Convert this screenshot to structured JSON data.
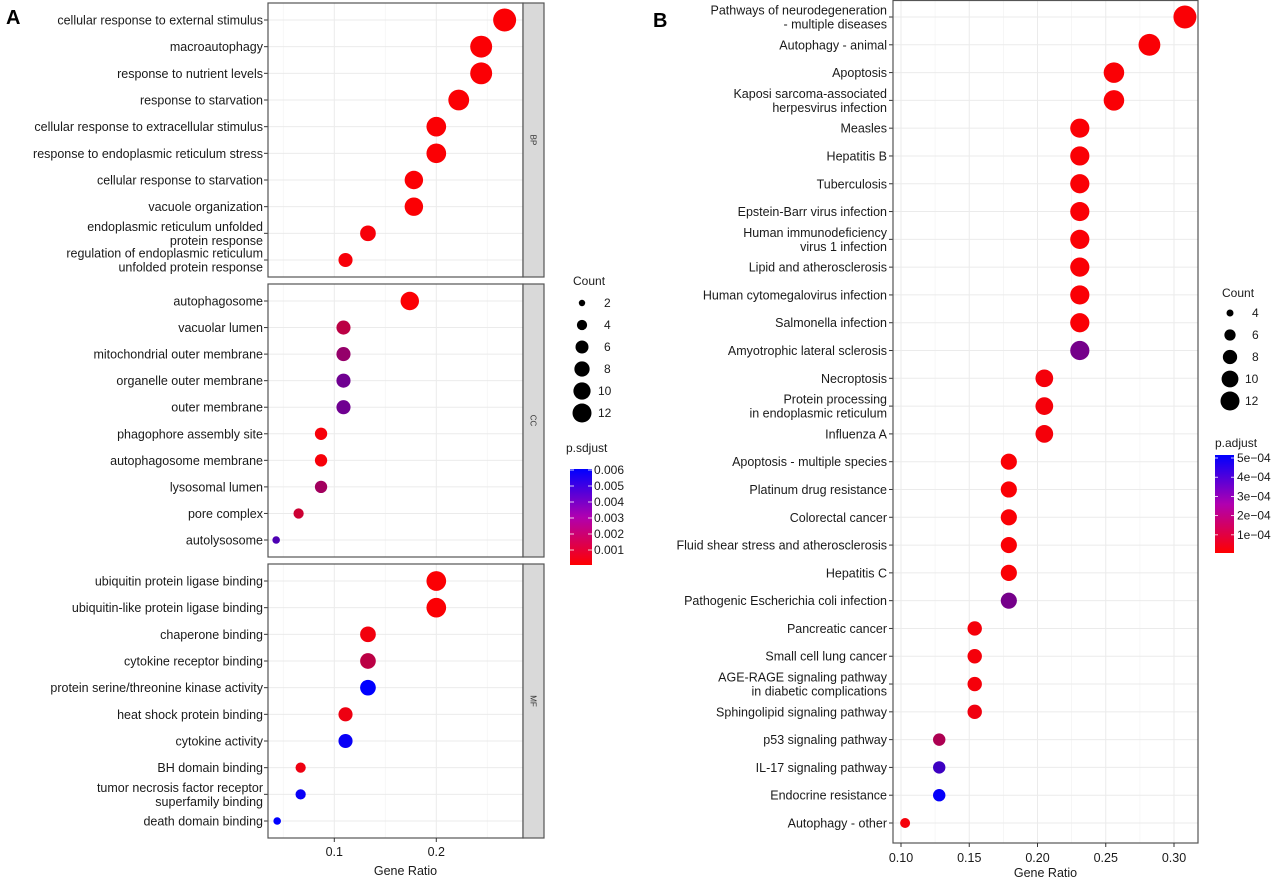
{
  "chart_data": [
    {
      "type": "scatter",
      "panel_label": "A",
      "xlabel": "Gene Ratio",
      "ylabel": "",
      "xlim": [
        0.035,
        0.285
      ],
      "xticks": [
        0.1,
        0.2
      ],
      "xtick_labels": [
        "0.1",
        "0.2"
      ],
      "grid": true,
      "size_legend": {
        "title": "Count",
        "values": [
          2,
          4,
          6,
          8,
          10,
          12
        ],
        "labels": [
          "2",
          "4",
          "6",
          "8",
          "10",
          "12"
        ]
      },
      "color_legend": {
        "title": "p.sdjust",
        "range": [
          0.0,
          0.006
        ],
        "low_color": "#ff0000",
        "high_color": "#0000ff",
        "ticks": [
          0.006,
          0.005,
          0.004,
          0.003,
          0.002,
          0.001
        ],
        "tick_labels": [
          "0.006",
          "0.005",
          "0.004",
          "0.003",
          "0.002",
          "0.001"
        ]
      },
      "legend_position": "right",
      "facets": [
        {
          "name": "BP",
          "terms": [
            {
              "label": [
                "cellular response to external stimulus"
              ],
              "gene_ratio": 0.267,
              "count": 12,
              "p_adjust": 0.0001
            },
            {
              "label": [
                "macroautophagy"
              ],
              "gene_ratio": 0.244,
              "count": 11,
              "p_adjust": 0.0001
            },
            {
              "label": [
                "response to nutrient levels"
              ],
              "gene_ratio": 0.244,
              "count": 11,
              "p_adjust": 0.0001
            },
            {
              "label": [
                "response to starvation"
              ],
              "gene_ratio": 0.222,
              "count": 10,
              "p_adjust": 0.0001
            },
            {
              "label": [
                "cellular response to extracellular stimulus"
              ],
              "gene_ratio": 0.2,
              "count": 9,
              "p_adjust": 0.0001
            },
            {
              "label": [
                "response to endoplasmic reticulum stress"
              ],
              "gene_ratio": 0.2,
              "count": 9,
              "p_adjust": 0.0001
            },
            {
              "label": [
                "cellular response to starvation"
              ],
              "gene_ratio": 0.178,
              "count": 8,
              "p_adjust": 0.0001
            },
            {
              "label": [
                "vacuole organization"
              ],
              "gene_ratio": 0.178,
              "count": 8,
              "p_adjust": 0.0001
            },
            {
              "label": [
                "endoplasmic reticulum unfolded",
                "protein response"
              ],
              "gene_ratio": 0.133,
              "count": 6,
              "p_adjust": 0.0002
            },
            {
              "label": [
                "regulation of endoplasmic reticulum",
                "unfolded protein response"
              ],
              "gene_ratio": 0.111,
              "count": 5,
              "p_adjust": 0.0002
            }
          ]
        },
        {
          "name": "CC",
          "terms": [
            {
              "label": [
                "autophagosome"
              ],
              "gene_ratio": 0.174,
              "count": 8,
              "p_adjust": 0.0001
            },
            {
              "label": [
                "vacuolar lumen"
              ],
              "gene_ratio": 0.109,
              "count": 5,
              "p_adjust": 0.0016
            },
            {
              "label": [
                "mitochondrial outer membrane"
              ],
              "gene_ratio": 0.109,
              "count": 5,
              "p_adjust": 0.0025
            },
            {
              "label": [
                "organelle outer membrane"
              ],
              "gene_ratio": 0.109,
              "count": 5,
              "p_adjust": 0.0034
            },
            {
              "label": [
                "outer membrane"
              ],
              "gene_ratio": 0.109,
              "count": 5,
              "p_adjust": 0.0034
            },
            {
              "label": [
                "phagophore assembly site"
              ],
              "gene_ratio": 0.087,
              "count": 4,
              "p_adjust": 0.0002
            },
            {
              "label": [
                "autophagosome membrane"
              ],
              "gene_ratio": 0.087,
              "count": 4,
              "p_adjust": 0.0002
            },
            {
              "label": [
                "lysosomal lumen"
              ],
              "gene_ratio": 0.087,
              "count": 4,
              "p_adjust": 0.0022
            },
            {
              "label": [
                "pore complex"
              ],
              "gene_ratio": 0.065,
              "count": 3,
              "p_adjust": 0.0012
            },
            {
              "label": [
                "autolysosome"
              ],
              "gene_ratio": 0.043,
              "count": 2,
              "p_adjust": 0.0042
            }
          ]
        },
        {
          "name": "MF",
          "terms": [
            {
              "label": [
                "ubiquitin protein ligase binding"
              ],
              "gene_ratio": 0.2,
              "count": 9,
              "p_adjust": 0.0001
            },
            {
              "label": [
                "ubiquitin-like protein ligase binding"
              ],
              "gene_ratio": 0.2,
              "count": 9,
              "p_adjust": 0.0001
            },
            {
              "label": [
                "chaperone binding"
              ],
              "gene_ratio": 0.133,
              "count": 6,
              "p_adjust": 0.0003
            },
            {
              "label": [
                "cytokine receptor binding"
              ],
              "gene_ratio": 0.133,
              "count": 6,
              "p_adjust": 0.0016
            },
            {
              "label": [
                "protein serine/threonine kinase activity"
              ],
              "gene_ratio": 0.133,
              "count": 6,
              "p_adjust": 0.006
            },
            {
              "label": [
                "heat shock protein binding"
              ],
              "gene_ratio": 0.111,
              "count": 5,
              "p_adjust": 0.0004
            },
            {
              "label": [
                "cytokine activity"
              ],
              "gene_ratio": 0.111,
              "count": 5,
              "p_adjust": 0.0058
            },
            {
              "label": [
                "BH domain binding"
              ],
              "gene_ratio": 0.067,
              "count": 3,
              "p_adjust": 0.0004
            },
            {
              "label": [
                "tumor necrosis factor receptor",
                "superfamily binding"
              ],
              "gene_ratio": 0.067,
              "count": 3,
              "p_adjust": 0.0058
            },
            {
              "label": [
                "death domain binding"
              ],
              "gene_ratio": 0.044,
              "count": 2,
              "p_adjust": 0.006
            }
          ]
        }
      ]
    },
    {
      "type": "scatter",
      "panel_label": "B",
      "xlabel": "Gene Ratio",
      "ylabel": "",
      "xlim": [
        0.094,
        0.317
      ],
      "xticks": [
        0.1,
        0.15,
        0.2,
        0.25,
        0.3
      ],
      "xtick_labels": [
        "0.10",
        "0.15",
        "0.20",
        "0.25",
        "0.30"
      ],
      "grid": true,
      "size_legend": {
        "title": "Count",
        "values": [
          4,
          6,
          8,
          10,
          12
        ],
        "labels": [
          "4",
          "6",
          "8",
          "10",
          "12"
        ]
      },
      "color_legend": {
        "title": "p.adjust",
        "range": [
          0.0,
          0.0005
        ],
        "low_color": "#ff0000",
        "high_color": "#0000ff",
        "ticks": [
          0.0005,
          0.0004,
          0.0003,
          0.0002,
          0.0001
        ],
        "tick_labels": [
          "5e−04",
          "4e−04",
          "3e−04",
          "2e−04",
          "1e−04"
        ]
      },
      "legend_position": "right",
      "terms": [
        {
          "label": [
            "Pathways of neurodegeneration",
            "- multiple diseases"
          ],
          "gene_ratio": 0.308,
          "count": 12,
          "p_adjust": 1e-05
        },
        {
          "label": [
            "Autophagy - animal"
          ],
          "gene_ratio": 0.282,
          "count": 11,
          "p_adjust": 1e-05
        },
        {
          "label": [
            "Apoptosis"
          ],
          "gene_ratio": 0.256,
          "count": 10,
          "p_adjust": 1e-05
        },
        {
          "label": [
            "Kaposi sarcoma-associated",
            "herpesvirus infection"
          ],
          "gene_ratio": 0.256,
          "count": 10,
          "p_adjust": 1e-05
        },
        {
          "label": [
            "Measles"
          ],
          "gene_ratio": 0.231,
          "count": 9,
          "p_adjust": 1e-05
        },
        {
          "label": [
            "Hepatitis B"
          ],
          "gene_ratio": 0.231,
          "count": 9,
          "p_adjust": 1e-05
        },
        {
          "label": [
            "Tuberculosis"
          ],
          "gene_ratio": 0.231,
          "count": 9,
          "p_adjust": 1e-05
        },
        {
          "label": [
            "Epstein-Barr virus infection"
          ],
          "gene_ratio": 0.231,
          "count": 9,
          "p_adjust": 1e-05
        },
        {
          "label": [
            "Human immunodeficiency",
            "virus 1 infection"
          ],
          "gene_ratio": 0.231,
          "count": 9,
          "p_adjust": 1e-05
        },
        {
          "label": [
            "Lipid and atherosclerosis"
          ],
          "gene_ratio": 0.231,
          "count": 9,
          "p_adjust": 1e-05
        },
        {
          "label": [
            "Human cytomegalovirus infection"
          ],
          "gene_ratio": 0.231,
          "count": 9,
          "p_adjust": 1e-05
        },
        {
          "label": [
            "Salmonella infection"
          ],
          "gene_ratio": 0.231,
          "count": 9,
          "p_adjust": 1e-05
        },
        {
          "label": [
            "Amyotrophic lateral sclerosis"
          ],
          "gene_ratio": 0.231,
          "count": 9,
          "p_adjust": 0.00027
        },
        {
          "label": [
            "Necroptosis"
          ],
          "gene_ratio": 0.205,
          "count": 8,
          "p_adjust": 2e-05
        },
        {
          "label": [
            "Protein processing",
            "in endoplasmic reticulum"
          ],
          "gene_ratio": 0.205,
          "count": 8,
          "p_adjust": 2e-05
        },
        {
          "label": [
            "Influenza A"
          ],
          "gene_ratio": 0.205,
          "count": 8,
          "p_adjust": 2e-05
        },
        {
          "label": [
            "Apoptosis - multiple species"
          ],
          "gene_ratio": 0.179,
          "count": 7,
          "p_adjust": 1e-05
        },
        {
          "label": [
            "Platinum drug resistance"
          ],
          "gene_ratio": 0.179,
          "count": 7,
          "p_adjust": 1e-05
        },
        {
          "label": [
            "Colorectal cancer"
          ],
          "gene_ratio": 0.179,
          "count": 7,
          "p_adjust": 1e-05
        },
        {
          "label": [
            "Fluid shear stress and atherosclerosis"
          ],
          "gene_ratio": 0.179,
          "count": 7,
          "p_adjust": 1e-05
        },
        {
          "label": [
            "Hepatitis C"
          ],
          "gene_ratio": 0.179,
          "count": 7,
          "p_adjust": 1e-05
        },
        {
          "label": [
            "Pathogenic Escherichia coli infection"
          ],
          "gene_ratio": 0.179,
          "count": 7,
          "p_adjust": 0.00027
        },
        {
          "label": [
            "Pancreatic cancer"
          ],
          "gene_ratio": 0.154,
          "count": 6,
          "p_adjust": 2e-05
        },
        {
          "label": [
            "Small cell lung cancer"
          ],
          "gene_ratio": 0.154,
          "count": 6,
          "p_adjust": 2e-05
        },
        {
          "label": [
            "AGE-RAGE signaling pathway",
            "in diabetic complications"
          ],
          "gene_ratio": 0.154,
          "count": 6,
          "p_adjust": 2e-05
        },
        {
          "label": [
            "Sphingolipid signaling pathway"
          ],
          "gene_ratio": 0.154,
          "count": 6,
          "p_adjust": 3e-05
        },
        {
          "label": [
            "p53 signaling pathway"
          ],
          "gene_ratio": 0.128,
          "count": 5,
          "p_adjust": 0.00016
        },
        {
          "label": [
            "IL-17 signaling pathway"
          ],
          "gene_ratio": 0.128,
          "count": 5,
          "p_adjust": 0.00038
        },
        {
          "label": [
            "Endocrine resistance"
          ],
          "gene_ratio": 0.128,
          "count": 5,
          "p_adjust": 0.00049
        },
        {
          "label": [
            "Autophagy - other"
          ],
          "gene_ratio": 0.103,
          "count": 4,
          "p_adjust": 2e-05
        }
      ]
    }
  ]
}
